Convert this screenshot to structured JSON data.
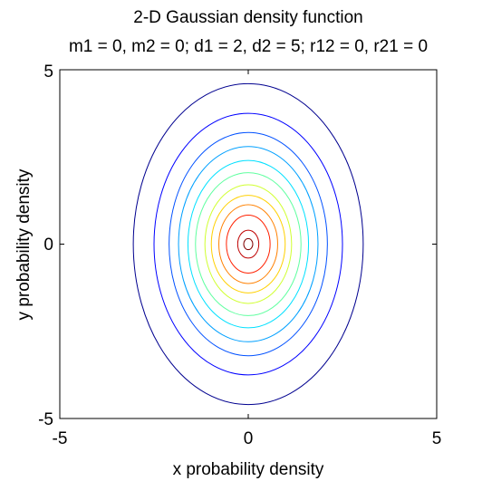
{
  "chart_data": {
    "type": "contour",
    "title": "2-D Gaussian density function",
    "subtitle": "m1 = 0, m2 = 0; d1 = 2, d2 = 5; r12 = 0, r21 = 0",
    "xlabel": "x probability density",
    "ylabel": "y probability density",
    "xlim": [
      -5,
      5
    ],
    "ylim": [
      -5,
      5
    ],
    "xticks": [
      "-5",
      "0",
      "5"
    ],
    "yticks": [
      "-5",
      "0",
      "5"
    ],
    "grid": false,
    "mean": [
      0,
      0
    ],
    "contours": [
      {
        "rx": 3.05,
        "ry": 4.6,
        "color": "#00008f"
      },
      {
        "rx": 2.5,
        "ry": 3.75,
        "color": "#0000ff"
      },
      {
        "rx": 2.1,
        "ry": 3.2,
        "color": "#0050ff"
      },
      {
        "rx": 1.85,
        "ry": 2.8,
        "color": "#00a0ff"
      },
      {
        "rx": 1.6,
        "ry": 2.4,
        "color": "#00e0ff"
      },
      {
        "rx": 1.4,
        "ry": 2.05,
        "color": "#60ffa0"
      },
      {
        "rx": 1.15,
        "ry": 1.7,
        "color": "#d0ff30"
      },
      {
        "rx": 0.98,
        "ry": 1.4,
        "color": "#ffd000"
      },
      {
        "rx": 0.78,
        "ry": 1.13,
        "color": "#ff8000"
      },
      {
        "rx": 0.58,
        "ry": 0.83,
        "color": "#ff2000"
      },
      {
        "rx": 0.28,
        "ry": 0.4,
        "color": "#bf0000"
      },
      {
        "rx": 0.12,
        "ry": 0.16,
        "color": "#800000"
      }
    ]
  }
}
